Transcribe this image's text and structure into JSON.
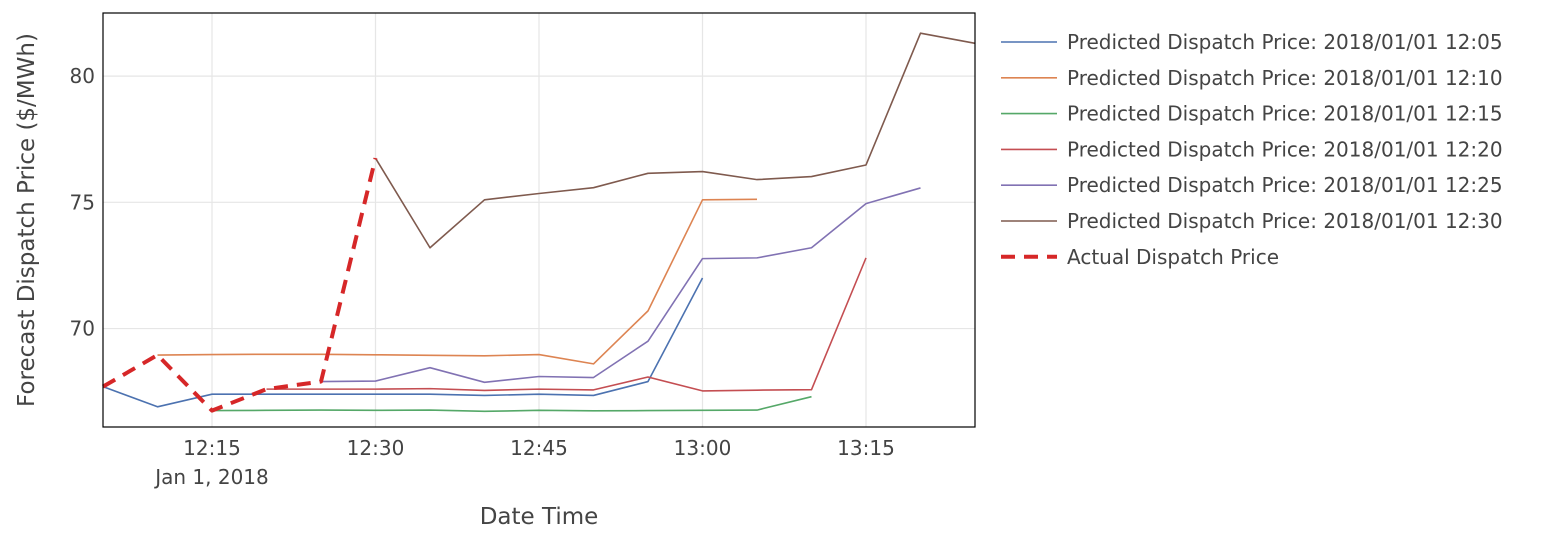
{
  "chart_data": {
    "type": "line",
    "xlabel": "Date Time",
    "ylabel": "Forecast Dispatch Price ($/MWh)",
    "xlim": [
      "2018-01-01 12:05",
      "2018-01-01 13:25"
    ],
    "ylim": [
      66.1,
      82.5
    ],
    "grid": true,
    "legend_position": "right",
    "x_ticks": [
      {
        "x": "2018-01-01 12:15",
        "label": "12:15",
        "sublabel": "Jan 1, 2018"
      },
      {
        "x": "2018-01-01 12:30",
        "label": "12:30",
        "sublabel": ""
      },
      {
        "x": "2018-01-01 12:45",
        "label": "12:45",
        "sublabel": ""
      },
      {
        "x": "2018-01-01 13:00",
        "label": "13:00",
        "sublabel": ""
      },
      {
        "x": "2018-01-01 13:15",
        "label": "13:15",
        "sublabel": ""
      }
    ],
    "y_ticks": [
      {
        "y": 70,
        "label": "70"
      },
      {
        "y": 75,
        "label": "75"
      },
      {
        "y": 80,
        "label": "80"
      }
    ],
    "series": [
      {
        "name": "Predicted Dispatch Price: 2018/01/01 12:05",
        "color": "#4c72b0",
        "dash": "solid",
        "points": [
          [
            "2018-01-01 12:05",
            67.7
          ],
          [
            "2018-01-01 12:10",
            66.9
          ],
          [
            "2018-01-01 12:15",
            67.4
          ],
          [
            "2018-01-01 12:20",
            67.4
          ],
          [
            "2018-01-01 12:25",
            67.4
          ],
          [
            "2018-01-01 12:30",
            67.4
          ],
          [
            "2018-01-01 12:35",
            67.4
          ],
          [
            "2018-01-01 12:40",
            67.35
          ],
          [
            "2018-01-01 12:45",
            67.4
          ],
          [
            "2018-01-01 12:50",
            67.35
          ],
          [
            "2018-01-01 12:55",
            67.9
          ],
          [
            "2018-01-01 13:00",
            72.0
          ]
        ]
      },
      {
        "name": "Predicted Dispatch Price: 2018/01/01 12:10",
        "color": "#dd8452",
        "dash": "solid",
        "points": [
          [
            "2018-01-01 12:10",
            68.95
          ],
          [
            "2018-01-01 12:15",
            68.97
          ],
          [
            "2018-01-01 12:20",
            68.98
          ],
          [
            "2018-01-01 12:25",
            68.98
          ],
          [
            "2018-01-01 12:30",
            68.96
          ],
          [
            "2018-01-01 12:35",
            68.94
          ],
          [
            "2018-01-01 12:40",
            68.92
          ],
          [
            "2018-01-01 12:45",
            68.97
          ],
          [
            "2018-01-01 12:50",
            68.6
          ],
          [
            "2018-01-01 12:55",
            70.7
          ],
          [
            "2018-01-01 13:00",
            75.1
          ],
          [
            "2018-01-01 13:05",
            75.12
          ]
        ]
      },
      {
        "name": "Predicted Dispatch Price: 2018/01/01 12:15",
        "color": "#55a868",
        "dash": "solid",
        "points": [
          [
            "2018-01-01 12:15",
            66.75
          ],
          [
            "2018-01-01 12:20",
            66.76
          ],
          [
            "2018-01-01 12:25",
            66.77
          ],
          [
            "2018-01-01 12:30",
            66.76
          ],
          [
            "2018-01-01 12:35",
            66.77
          ],
          [
            "2018-01-01 12:40",
            66.72
          ],
          [
            "2018-01-01 12:45",
            66.76
          ],
          [
            "2018-01-01 12:50",
            66.74
          ],
          [
            "2018-01-01 12:55",
            66.75
          ],
          [
            "2018-01-01 13:00",
            66.76
          ],
          [
            "2018-01-01 13:05",
            66.77
          ],
          [
            "2018-01-01 13:10",
            67.3
          ]
        ]
      },
      {
        "name": "Predicted Dispatch Price: 2018/01/01 12:20",
        "color": "#c44e52",
        "dash": "solid",
        "points": [
          [
            "2018-01-01 12:20",
            67.6
          ],
          [
            "2018-01-01 12:25",
            67.6
          ],
          [
            "2018-01-01 12:30",
            67.6
          ],
          [
            "2018-01-01 12:35",
            67.62
          ],
          [
            "2018-01-01 12:40",
            67.55
          ],
          [
            "2018-01-01 12:45",
            67.6
          ],
          [
            "2018-01-01 12:50",
            67.57
          ],
          [
            "2018-01-01 12:55",
            68.08
          ],
          [
            "2018-01-01 13:00",
            67.53
          ],
          [
            "2018-01-01 13:05",
            67.56
          ],
          [
            "2018-01-01 13:10",
            67.58
          ],
          [
            "2018-01-01 13:15",
            72.8
          ]
        ]
      },
      {
        "name": "Predicted Dispatch Price: 2018/01/01 12:25",
        "color": "#8172b3",
        "dash": "solid",
        "points": [
          [
            "2018-01-01 12:25",
            67.9
          ],
          [
            "2018-01-01 12:30",
            67.92
          ],
          [
            "2018-01-01 12:35",
            68.45
          ],
          [
            "2018-01-01 12:40",
            67.87
          ],
          [
            "2018-01-01 12:45",
            68.1
          ],
          [
            "2018-01-01 12:50",
            68.06
          ],
          [
            "2018-01-01 12:55",
            69.5
          ],
          [
            "2018-01-01 13:00",
            72.77
          ],
          [
            "2018-01-01 13:05",
            72.8
          ],
          [
            "2018-01-01 13:10",
            73.2
          ],
          [
            "2018-01-01 13:15",
            74.95
          ],
          [
            "2018-01-01 13:20",
            75.57
          ]
        ]
      },
      {
        "name": "Predicted Dispatch Price: 2018/01/01 12:30",
        "color": "#7f5a4e",
        "dash": "solid",
        "points": [
          [
            "2018-01-01 12:30",
            76.75
          ],
          [
            "2018-01-01 12:35",
            73.2
          ],
          [
            "2018-01-01 12:40",
            75.1
          ],
          [
            "2018-01-01 12:45",
            75.35
          ],
          [
            "2018-01-01 12:50",
            75.58
          ],
          [
            "2018-01-01 12:55",
            76.15
          ],
          [
            "2018-01-01 13:00",
            76.22
          ],
          [
            "2018-01-01 13:05",
            75.9
          ],
          [
            "2018-01-01 13:10",
            76.02
          ],
          [
            "2018-01-01 13:15",
            76.48
          ],
          [
            "2018-01-01 13:20",
            81.7
          ],
          [
            "2018-01-01 13:25",
            81.3
          ]
        ]
      },
      {
        "name": "Actual Dispatch Price",
        "color": "#d62728",
        "dash": "dash",
        "points": [
          [
            "2018-01-01 12:05",
            67.7
          ],
          [
            "2018-01-01 12:10",
            68.95
          ],
          [
            "2018-01-01 12:15",
            66.75
          ],
          [
            "2018-01-01 12:20",
            67.6
          ],
          [
            "2018-01-01 12:25",
            67.9
          ],
          [
            "2018-01-01 12:30",
            76.75
          ]
        ]
      }
    ]
  }
}
